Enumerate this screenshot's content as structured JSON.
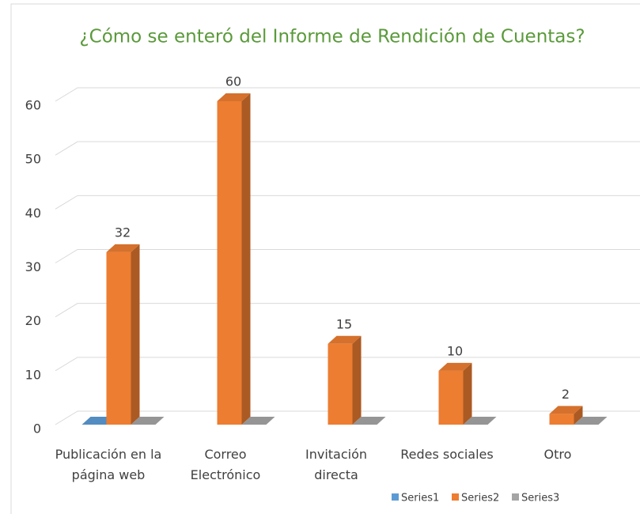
{
  "chart_data": {
    "type": "bar3d",
    "title": "¿Cómo se enteró del Informe de Rendición de Cuentas?",
    "categories": [
      "Publicación en la página web",
      "Correo Electrónico",
      "Invitación directa",
      "Redes sociales",
      "Otro"
    ],
    "series": [
      {
        "name": "Series1",
        "color": "#5b9bd5",
        "values": [
          0,
          null,
          null,
          null,
          null
        ]
      },
      {
        "name": "Series2",
        "color": "#ed7d31",
        "values": [
          32,
          60,
          15,
          10,
          2
        ]
      },
      {
        "name": "Series3",
        "color": "#a5a5a5",
        "values": [
          0,
          0,
          0,
          0,
          0
        ]
      }
    ],
    "data_labels_series": "Series2",
    "ylim": [
      0,
      60
    ],
    "yticks": [
      0,
      10,
      20,
      30,
      40,
      50,
      60
    ],
    "grid": true,
    "legend": "bottom"
  }
}
